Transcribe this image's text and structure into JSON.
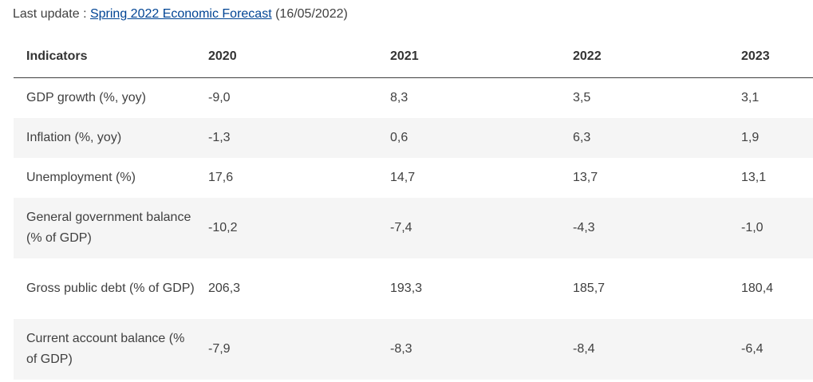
{
  "last_update": {
    "prefix": "Last update : ",
    "link_text": "Spring 2022 Economic Forecast",
    "suffix": " (16/05/2022)"
  },
  "table": {
    "headers": [
      "Indicators",
      "2020",
      "2021",
      "2022",
      "2023"
    ],
    "rows": [
      {
        "indicator": "GDP growth (%, yoy)",
        "values": [
          "-9,0",
          "8,3",
          "3,5",
          "3,1"
        ]
      },
      {
        "indicator": "Inflation (%, yoy)",
        "values": [
          "-1,3",
          "0,6",
          "6,3",
          "1,9"
        ]
      },
      {
        "indicator": "Unemployment (%)",
        "values": [
          "17,6",
          "14,7",
          "13,7",
          "13,1"
        ]
      },
      {
        "indicator": "General government balance (% of GDP)",
        "values": [
          "-10,2",
          "-7,4",
          "-4,3",
          "-1,0"
        ]
      },
      {
        "indicator": "Gross public debt (% of GDP)",
        "values": [
          "206,3",
          "193,3",
          "185,7",
          "180,4"
        ]
      },
      {
        "indicator": "Current account balance (% of GDP)",
        "values": [
          "-7,9",
          "-8,3",
          "-8,4",
          "-6,4"
        ]
      }
    ]
  }
}
